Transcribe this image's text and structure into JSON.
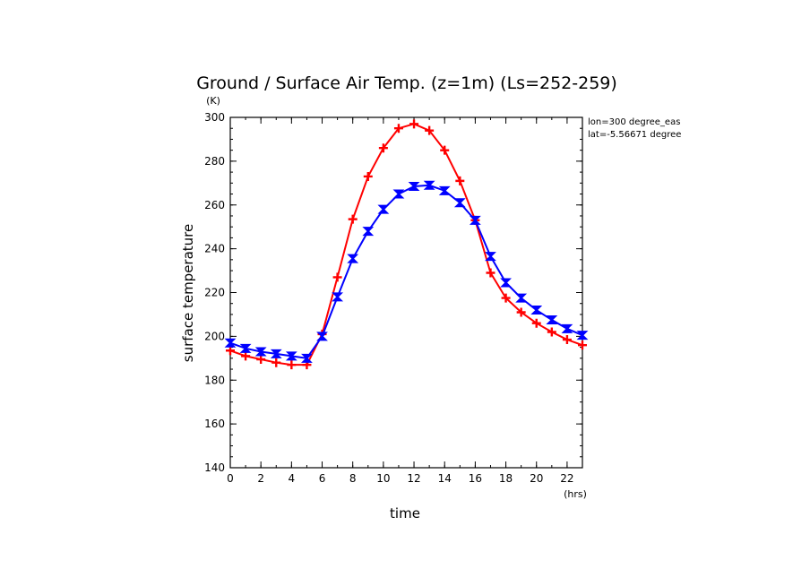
{
  "chart_data": {
    "type": "line",
    "title": "Ground / Surface Air Temp. (z=1m) (Ls=252-259)",
    "xlabel": "time",
    "ylabel": "surface temperature",
    "x_unit": "(hrs)",
    "y_unit": "(K)",
    "xlim": [
      0,
      23
    ],
    "ylim": [
      140,
      300
    ],
    "x_ticks": [
      0,
      2,
      4,
      6,
      8,
      10,
      12,
      14,
      16,
      18,
      20,
      22
    ],
    "y_ticks": [
      140,
      160,
      180,
      200,
      220,
      240,
      260,
      280,
      300
    ],
    "annotations": [
      "lon=300 degree_eas",
      "lat=-5.56671 degree"
    ],
    "x": [
      0,
      1,
      2,
      3,
      4,
      5,
      6,
      7,
      8,
      9,
      10,
      11,
      12,
      13,
      14,
      15,
      16,
      17,
      18,
      19,
      20,
      21,
      22,
      23
    ],
    "series": [
      {
        "color": "#ff0000",
        "marker": "plus",
        "values": [
          193.5,
          191,
          189.5,
          188,
          187,
          187,
          201,
          227,
          253.5,
          273,
          286,
          295,
          297,
          294,
          285,
          271,
          253,
          229,
          217.5,
          211,
          206,
          202,
          198.5,
          196
        ]
      },
      {
        "color": "#0000ff",
        "marker": "bowtie",
        "values": [
          197,
          194.5,
          193,
          192,
          191,
          190,
          200,
          218,
          235.5,
          248,
          258,
          265,
          268.5,
          269,
          266.5,
          261,
          253,
          236.5,
          224.5,
          217.5,
          212,
          207.5,
          203.5,
          200.5
        ]
      }
    ]
  }
}
